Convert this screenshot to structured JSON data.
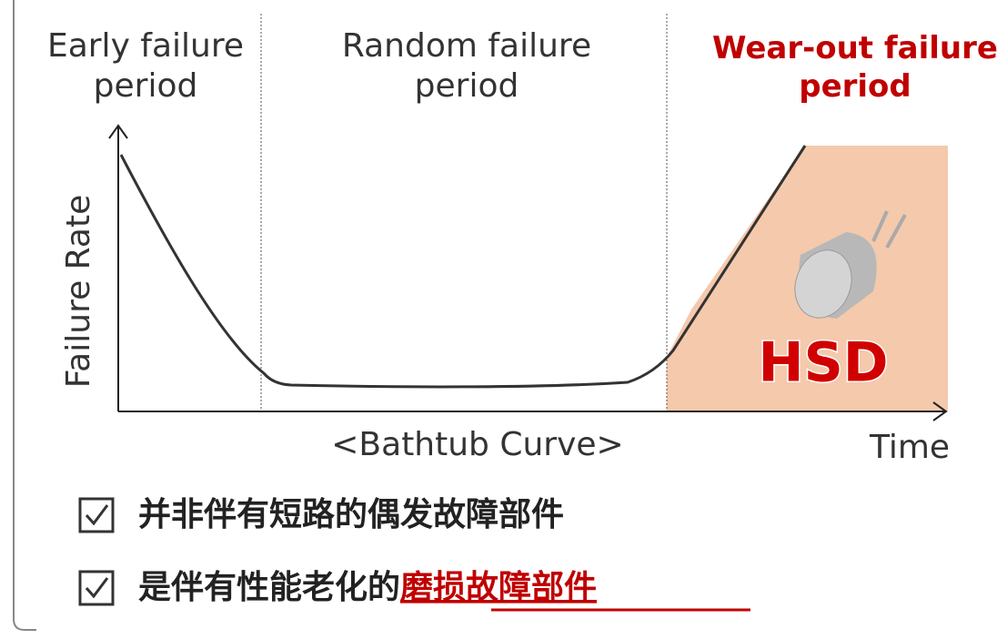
{
  "headers": [
    [
      "Early failure",
      "period"
    ],
    [
      "Random failure",
      "period"
    ],
    [
      "Wear-out failure",
      "period"
    ]
  ],
  "y_axis_label": "Failure Rate",
  "x_axis_label": "Time",
  "caption": "<Bathtub Curve>",
  "product_label": "HSD",
  "checklist": [
    [
      "并非伴有短路的偶发故障部件"
    ],
    [
      "是伴有性能老化的",
      "磨损故障部件"
    ]
  ]
}
